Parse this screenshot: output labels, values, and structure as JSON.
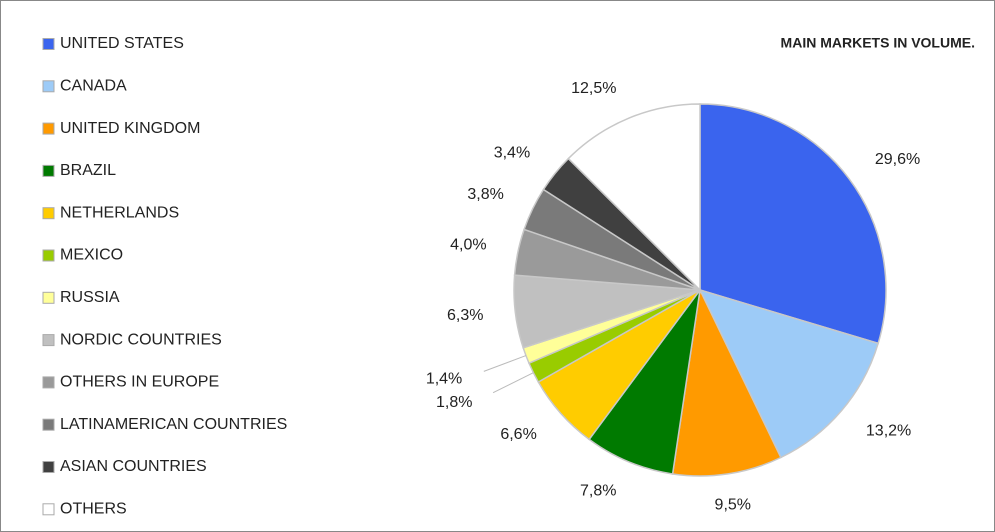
{
  "chart_data": {
    "type": "pie",
    "title": "MAIN MARKETS IN VOLUME.",
    "categories": [
      "UNITED STATES",
      "CANADA",
      "UNITED KINGDOM",
      "BRAZIL",
      "NETHERLANDS",
      "MEXICO",
      "RUSSIA",
      "NORDIC COUNTRIES",
      "OTHERS IN EUROPE",
      "LATINAMERICAN COUNTRIES",
      "ASIAN COUNTRIES",
      "OTHERS"
    ],
    "values": [
      29.6,
      13.2,
      9.5,
      7.8,
      6.6,
      1.8,
      1.4,
      6.3,
      4.0,
      3.8,
      3.4,
      12.5
    ],
    "value_labels": [
      "29,6%",
      "13,2%",
      "9,5%",
      "7,8%",
      "6,6%",
      "1,8%",
      "1,4%",
      "6,3%",
      "4,0%",
      "3,8%",
      "3,4%",
      "12,5%"
    ],
    "colors": [
      "#3a64ee",
      "#9dcbf7",
      "#ff9a00",
      "#007a00",
      "#ffcc00",
      "#99cc00",
      "#ffff99",
      "#c0c0c0",
      "#9a9a9a",
      "#7a7a7a",
      "#404040",
      "#ffffff"
    ],
    "legend": "left"
  }
}
